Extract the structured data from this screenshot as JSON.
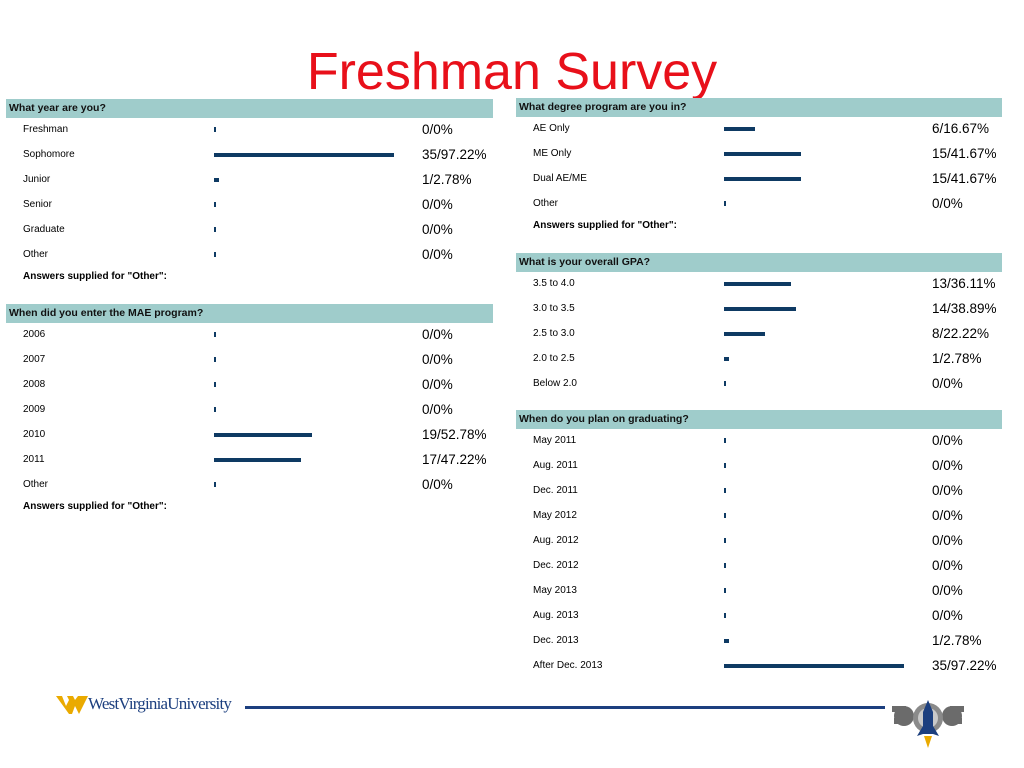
{
  "title": "Freshman Survey",
  "left_questions": [
    {
      "question": "What year are you?",
      "options": [
        {
          "label": "Freshman",
          "count_pct": "0/0%",
          "fraction": 0
        },
        {
          "label": "Sophomore",
          "count_pct": "35/97.22%",
          "fraction": 0.9722
        },
        {
          "label": "Junior",
          "count_pct": "1/2.78%",
          "fraction": 0.0278
        },
        {
          "label": "Senior",
          "count_pct": "0/0%",
          "fraction": 0
        },
        {
          "label": "Graduate",
          "count_pct": "0/0%",
          "fraction": 0
        },
        {
          "label": "Other",
          "count_pct": "0/0%",
          "fraction": 0
        }
      ],
      "other_note": "Answers supplied for \"Other\":"
    },
    {
      "question": "When did you enter the MAE program?",
      "options": [
        {
          "label": "2006",
          "count_pct": "0/0%",
          "fraction": 0
        },
        {
          "label": "2007",
          "count_pct": "0/0%",
          "fraction": 0
        },
        {
          "label": "2008",
          "count_pct": "0/0%",
          "fraction": 0
        },
        {
          "label": "2009",
          "count_pct": "0/0%",
          "fraction": 0
        },
        {
          "label": "2010",
          "count_pct": "19/52.78%",
          "fraction": 0.5278
        },
        {
          "label": "2011",
          "count_pct": "17/47.22%",
          "fraction": 0.4722
        },
        {
          "label": "Other",
          "count_pct": "0/0%",
          "fraction": 0
        }
      ],
      "other_note": "Answers supplied for \"Other\":"
    }
  ],
  "right_questions": [
    {
      "question": "What degree program are you in?",
      "options": [
        {
          "label": "AE Only",
          "count_pct": "6/16.67%",
          "fraction": 0.1667
        },
        {
          "label": "ME Only",
          "count_pct": "15/41.67%",
          "fraction": 0.4167
        },
        {
          "label": "Dual AE/ME",
          "count_pct": "15/41.67%",
          "fraction": 0.4167
        },
        {
          "label": "Other",
          "count_pct": "0/0%",
          "fraction": 0
        }
      ],
      "other_note": "Answers supplied for \"Other\":"
    },
    {
      "question": "What is your overall GPA?",
      "options": [
        {
          "label": "3.5 to 4.0",
          "count_pct": "13/36.11%",
          "fraction": 0.3611
        },
        {
          "label": "3.0 to 3.5",
          "count_pct": "14/38.89%",
          "fraction": 0.3889
        },
        {
          "label": "2.5 to 3.0",
          "count_pct": "8/22.22%",
          "fraction": 0.2222
        },
        {
          "label": "2.0 to 2.5",
          "count_pct": "1/2.78%",
          "fraction": 0.0278
        },
        {
          "label": "Below 2.0",
          "count_pct": "0/0%",
          "fraction": 0
        }
      ],
      "other_note": ""
    },
    {
      "question": "When do you plan on graduating?",
      "options": [
        {
          "label": "May 2011",
          "count_pct": "0/0%",
          "fraction": 0
        },
        {
          "label": "Aug. 2011",
          "count_pct": "0/0%",
          "fraction": 0
        },
        {
          "label": "Dec. 2011",
          "count_pct": "0/0%",
          "fraction": 0
        },
        {
          "label": "May 2012",
          "count_pct": "0/0%",
          "fraction": 0
        },
        {
          "label": "Aug. 2012",
          "count_pct": "0/0%",
          "fraction": 0
        },
        {
          "label": "Dec. 2012",
          "count_pct": "0/0%",
          "fraction": 0
        },
        {
          "label": "May 2013",
          "count_pct": "0/0%",
          "fraction": 0
        },
        {
          "label": "Aug. 2013",
          "count_pct": "0/0%",
          "fraction": 0
        },
        {
          "label": "Dec. 2013",
          "count_pct": "1/2.78%",
          "fraction": 0.0278
        },
        {
          "label": "After Dec. 2013",
          "count_pct": "35/97.22%",
          "fraction": 0.9722
        }
      ],
      "other_note": ""
    }
  ],
  "footer": {
    "university_name": "WestVirginiaUniversity",
    "logo_icon": "wvu-flying-wv-icon",
    "dept_logo_icon": "gear-rocket-icon"
  },
  "colors": {
    "title": "#e8101a",
    "header_bg": "#9fcccb",
    "bar": "#0e3a63",
    "wvu_gold": "#eaaa00",
    "wvu_blue": "#1c3f7f"
  }
}
